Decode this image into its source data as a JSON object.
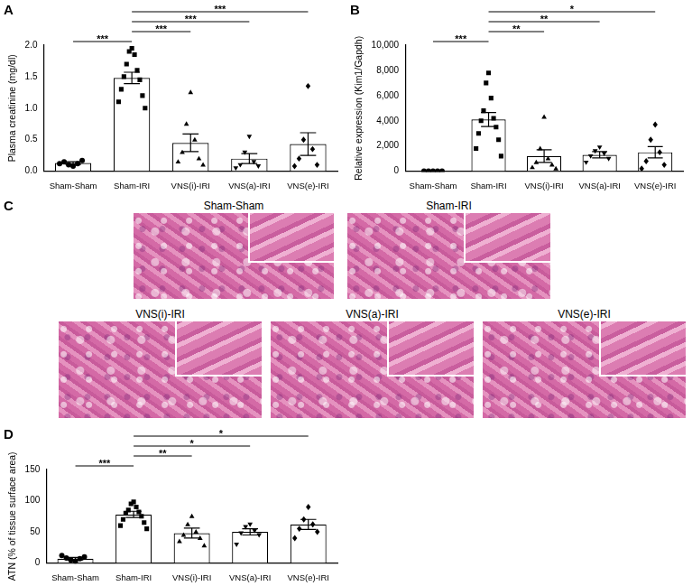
{
  "chart_data": [
    {
      "panel": "A",
      "type": "bar",
      "y_label": "Plasma creatinine (mg/dl)",
      "categories": [
        "Sham-Sham",
        "Sham-IRI",
        "VNS(i)-IRI",
        "VNS(a)-IRI",
        "VNS(e)-IRI"
      ],
      "values": [
        0.13,
        1.48,
        0.45,
        0.2,
        0.43
      ],
      "errors": [
        0.02,
        0.09,
        0.14,
        0.08,
        0.18
      ],
      "points": [
        [
          0.08,
          0.1,
          0.12,
          0.15,
          0.17,
          0.12
        ],
        [
          1.95,
          1.9,
          1.85,
          1.7,
          1.6,
          1.5,
          1.45,
          1.3,
          1.2,
          1.1,
          1.0
        ],
        [
          1.25,
          0.75,
          0.5,
          0.3,
          0.2,
          0.15,
          0.1
        ],
        [
          0.55,
          0.3,
          0.15,
          0.1,
          0.08,
          0.05
        ],
        [
          1.35,
          0.5,
          0.35,
          0.2,
          0.1,
          0.08
        ]
      ],
      "markers": [
        "circle",
        "square",
        "triangle",
        "triangle-down",
        "diamond"
      ],
      "color": "#ffffff",
      "ylim": [
        0,
        2
      ],
      "yticks": [
        {
          "value": 0,
          "label": "0.0"
        },
        0.5,
        {
          "value": 1,
          "label": "1.0"
        },
        1.5,
        {
          "value": 2,
          "label": "2.0"
        }
      ],
      "comparisons": [
        {
          "from": "Sham-Sham",
          "to": "Sham-IRI",
          "label": "***"
        },
        {
          "from": "Sham-IRI",
          "to": "VNS(i)-IRI",
          "label": "***"
        },
        {
          "from": "Sham-IRI",
          "to": "VNS(a)-IRI",
          "label": "***"
        },
        {
          "from": "Sham-IRI",
          "to": "VNS(e)-IRI",
          "label": "***"
        }
      ],
      "grid": false
    },
    {
      "panel": "B",
      "type": "bar",
      "y_label": "Relative expression (Kim1/Gapdh)",
      "categories": [
        "Sham-Sham",
        "Sham-IRI",
        "VNS(i)-IRI",
        "VNS(a)-IRI",
        "VNS(e)-IRI"
      ],
      "values": [
        10,
        4100,
        1200,
        1300,
        1500
      ],
      "errors": [
        5,
        550,
        500,
        250,
        450
      ],
      "points": [
        [
          0,
          0,
          0,
          0,
          0
        ],
        [
          7800,
          7000,
          5800,
          4800,
          4200,
          4000,
          3500,
          3000,
          2500,
          1800,
          1200
        ],
        [
          4300,
          1800,
          1000,
          700,
          500,
          300,
          200
        ],
        [
          1900,
          1600,
          1400,
          1200,
          1000,
          700
        ],
        [
          3700,
          2500,
          1500,
          800,
          500,
          200
        ]
      ],
      "markers": [
        "circle",
        "square",
        "triangle",
        "triangle-down",
        "diamond"
      ],
      "color": "#ffffff",
      "ylim": [
        0,
        10000
      ],
      "yticks": [
        0,
        {
          "value": 2000,
          "label": "2,000"
        },
        {
          "value": 4000,
          "label": "4,000"
        },
        {
          "value": 6000,
          "label": "6,000"
        },
        {
          "value": 8000,
          "label": "8,000"
        },
        {
          "value": 10000,
          "label": "10,000"
        }
      ],
      "comparisons": [
        {
          "from": "Sham-Sham",
          "to": "Sham-IRI",
          "label": "***"
        },
        {
          "from": "Sham-IRI",
          "to": "VNS(i)-IRI",
          "label": "**"
        },
        {
          "from": "Sham-IRI",
          "to": "VNS(a)-IRI",
          "label": "**"
        },
        {
          "from": "Sham-IRI",
          "to": "VNS(e)-IRI",
          "label": "*"
        }
      ],
      "grid": false
    },
    {
      "panel": "D",
      "type": "bar",
      "y_label": "ATN (% of tissue surface area)",
      "categories": [
        "Sham-Sham",
        "Sham-IRI",
        "VNS(i)-IRI",
        "VNS(a)-IRI",
        "VNS(e)-IRI"
      ],
      "values": [
        7,
        78,
        48,
        50,
        62
      ],
      "errors": [
        2,
        5,
        8,
        5,
        8
      ],
      "points": [
        [
          3,
          5,
          7,
          8,
          10,
          12
        ],
        [
          98,
          95,
          90,
          85,
          82,
          80,
          75,
          70,
          65,
          60,
          55
        ],
        [
          75,
          62,
          50,
          45,
          40,
          35,
          28
        ],
        [
          62,
          58,
          52,
          48,
          45,
          30
        ],
        [
          90,
          70,
          62,
          55,
          50,
          40
        ]
      ],
      "markers": [
        "circle",
        "square",
        "triangle",
        "triangle-down",
        "diamond"
      ],
      "color": "#ffffff",
      "ylim": [
        0,
        150
      ],
      "yticks": [
        0,
        50,
        100,
        150
      ],
      "comparisons": [
        {
          "from": "Sham-Sham",
          "to": "Sham-IRI",
          "label": "***"
        },
        {
          "from": "Sham-IRI",
          "to": "VNS(i)-IRI",
          "label": "**"
        },
        {
          "from": "Sham-IRI",
          "to": "VNS(a)-IRI",
          "label": "*"
        },
        {
          "from": "Sham-IRI",
          "to": "VNS(e)-IRI",
          "label": "*"
        }
      ],
      "grid": false
    }
  ],
  "image_panel": {
    "panel": "C",
    "images": [
      {
        "title": "Sham-Sham"
      },
      {
        "title": "Sham-IRI"
      },
      {
        "title": "VNS(i)-IRI"
      },
      {
        "title": "VNS(a)-IRI"
      },
      {
        "title": "VNS(e)-IRI"
      }
    ]
  }
}
